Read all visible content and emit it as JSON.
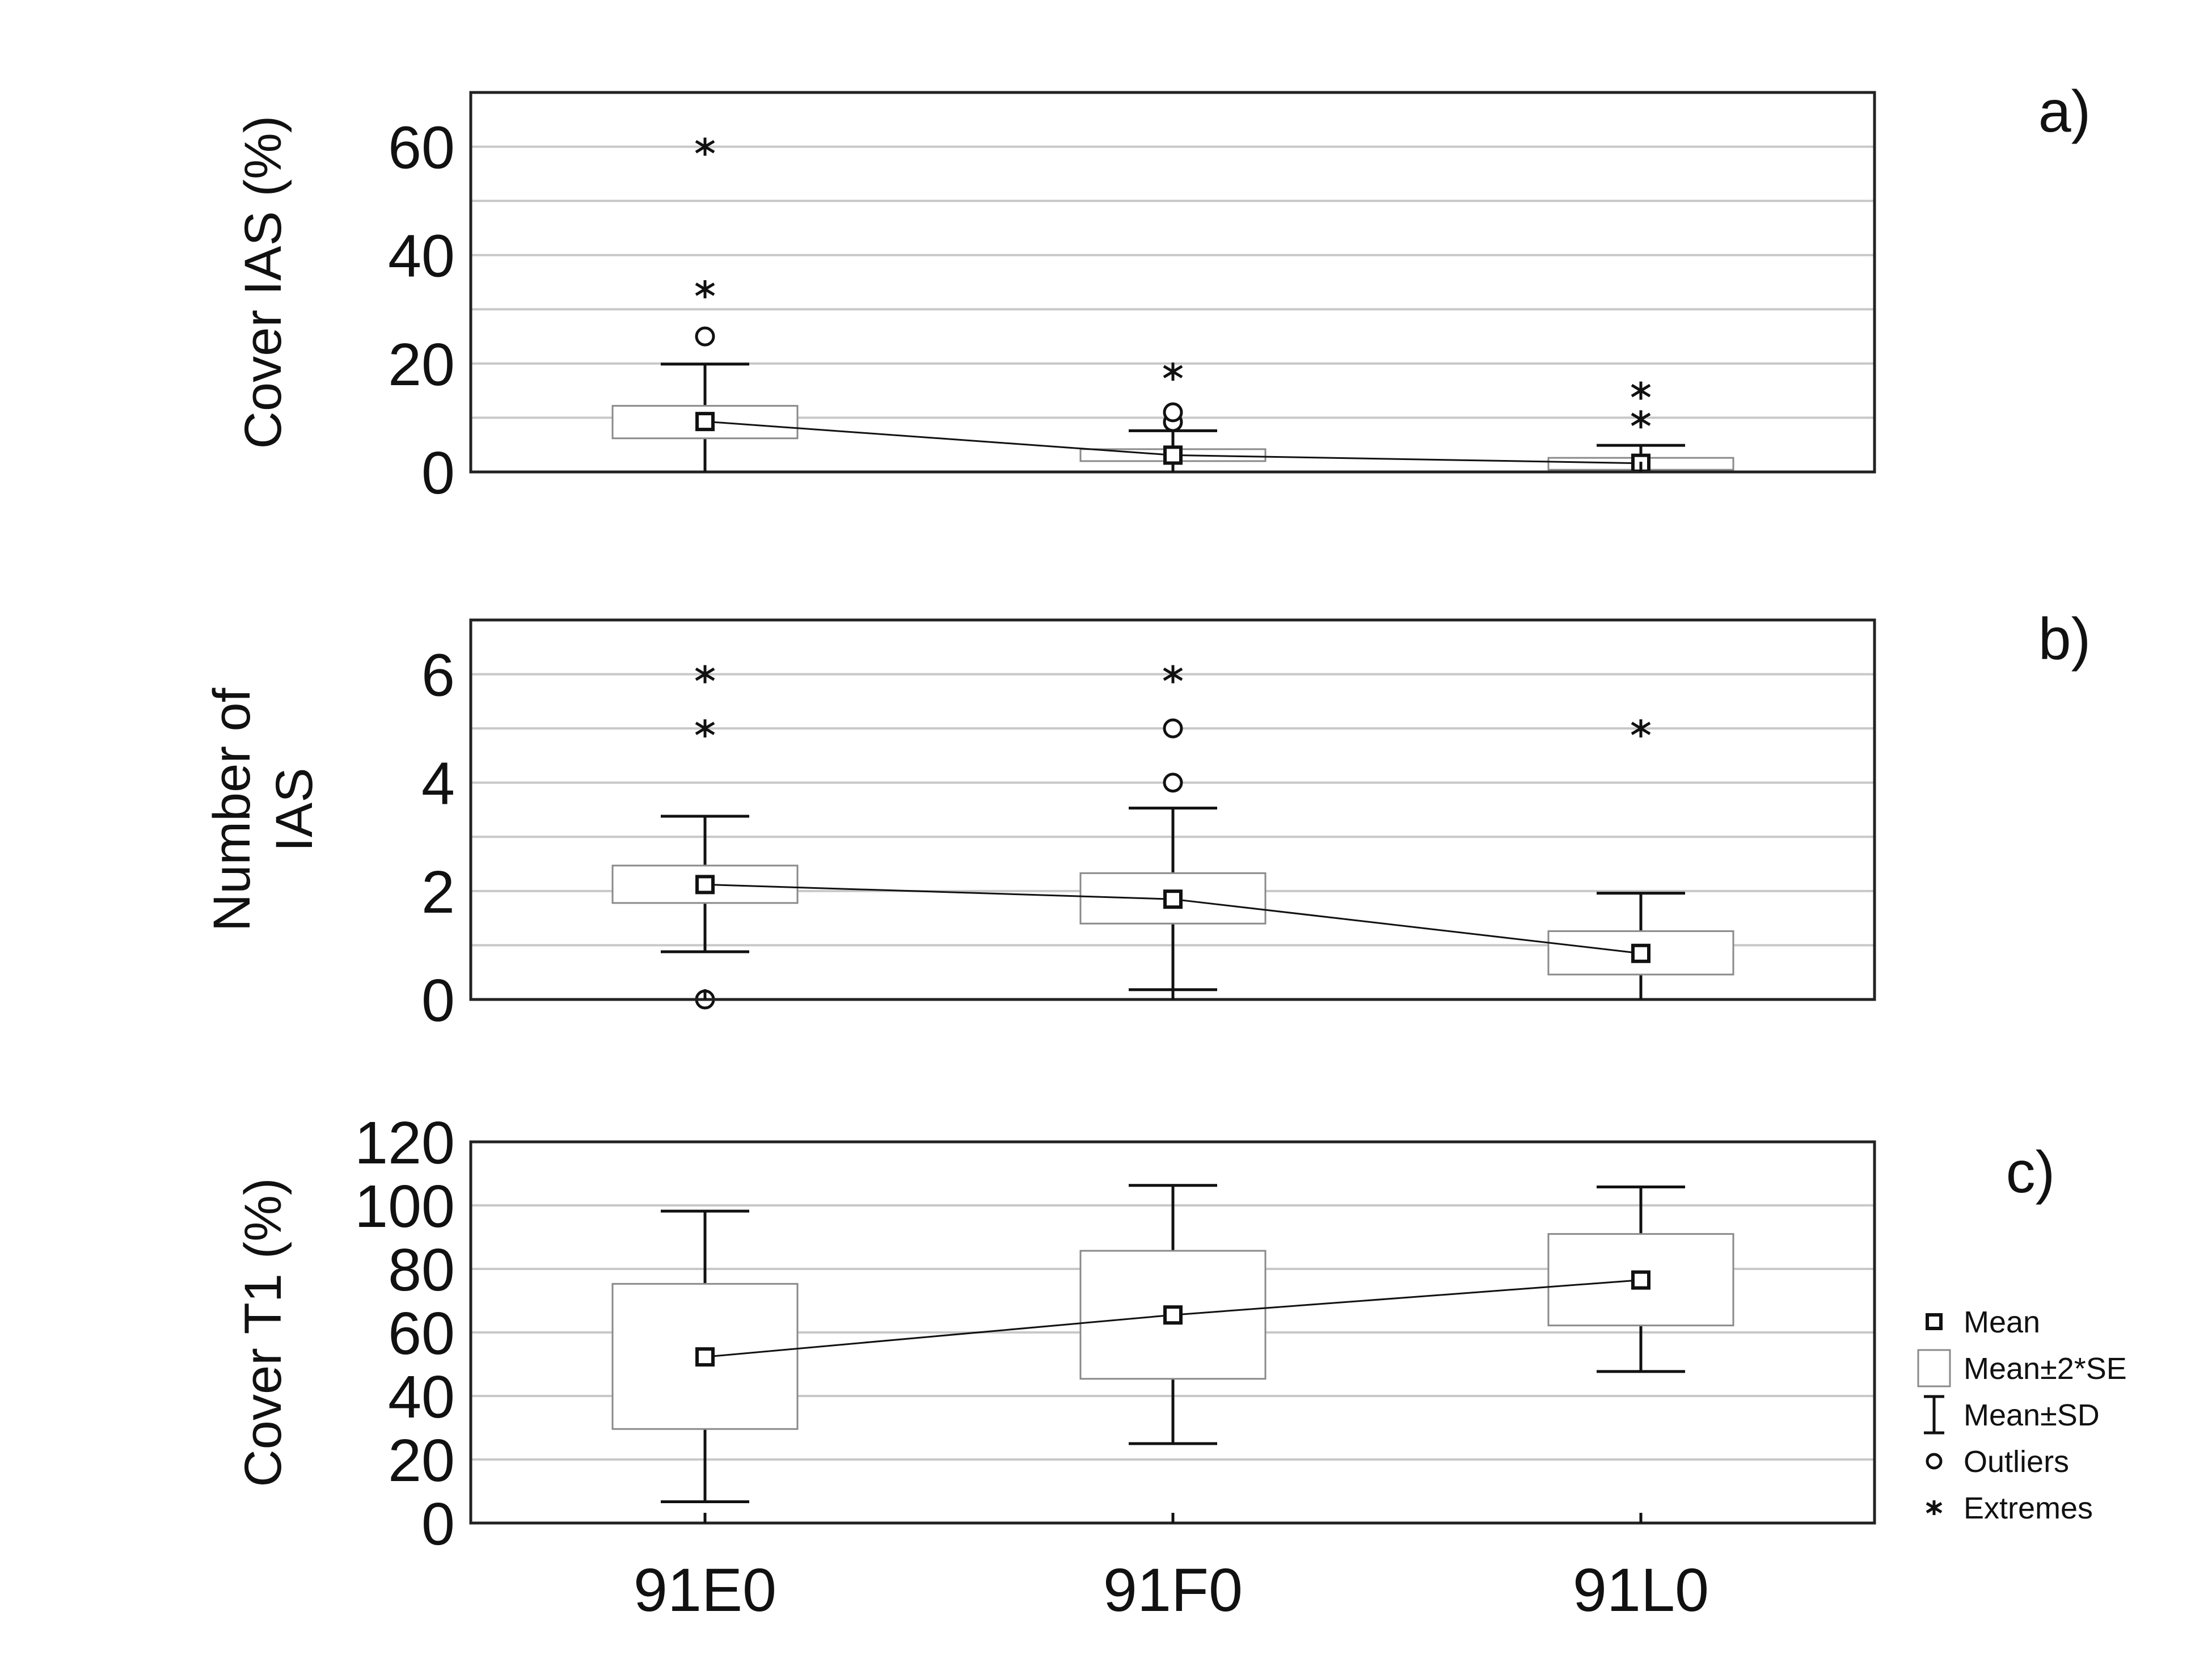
{
  "chart_data": [
    {
      "type": "box",
      "panel_label": "a)",
      "ylabel": "Cover IAS (%)",
      "ylim": [
        0,
        70
      ],
      "yticks": [
        0,
        20,
        40,
        60
      ],
      "ygrid": [
        10,
        20,
        30,
        40,
        50,
        60
      ],
      "categories": [
        "91E0",
        "91F0",
        "91L0"
      ],
      "mean": [
        9.3,
        3.1,
        1.6
      ],
      "se2_low": [
        6.2,
        2.0,
        0.4
      ],
      "se2_high": [
        12.2,
        4.2,
        2.6
      ],
      "sd_low": [
        0,
        0,
        0
      ],
      "sd_high": [
        19.9,
        7.6,
        4.9
      ],
      "outliers": [
        [
          25.0
        ],
        [
          9.2,
          11.0
        ],
        []
      ],
      "extremes": [
        [
          60.0,
          33.7
        ],
        [
          18.5
        ],
        [
          15.0,
          9.7
        ]
      ]
    },
    {
      "type": "box",
      "panel_label": "b)",
      "ylabel": "Number of IAS",
      "ylim": [
        0,
        7
      ],
      "yticks": [
        0,
        2,
        4,
        6
      ],
      "ygrid": [
        1,
        2,
        3,
        4,
        5,
        6
      ],
      "categories": [
        "91E0",
        "91F0",
        "91L0"
      ],
      "mean": [
        2.12,
        1.85,
        0.85
      ],
      "se2_low": [
        1.78,
        1.4,
        0.46
      ],
      "se2_high": [
        2.47,
        2.33,
        1.26
      ],
      "sd_low": [
        0.88,
        0.18,
        0
      ],
      "sd_high": [
        3.38,
        3.53,
        1.96
      ],
      "outliers": [
        [
          0
        ],
        [
          5,
          4
        ],
        []
      ],
      "extremes": [
        [
          6,
          5
        ],
        [
          6
        ],
        [
          5
        ]
      ]
    },
    {
      "type": "box",
      "panel_label": "c)",
      "ylabel": "Cover T1 (%)",
      "ylim": [
        0,
        120
      ],
      "yticks": [
        0,
        20,
        40,
        60,
        80,
        100,
        120
      ],
      "ygrid": [
        20,
        40,
        60,
        80,
        100
      ],
      "categories": [
        "91E0",
        "91F0",
        "91L0"
      ],
      "mean": [
        52.3,
        65.5,
        76.5
      ],
      "se2_low": [
        29.6,
        45.4,
        62.2
      ],
      "se2_high": [
        75.3,
        85.7,
        91.0
      ],
      "sd_low": [
        6.7,
        25.0,
        47.7
      ],
      "sd_high": [
        98.2,
        106.3,
        105.8
      ],
      "outliers": [
        [],
        [],
        []
      ],
      "extremes": [
        [],
        [],
        []
      ]
    }
  ],
  "legend": [
    {
      "label": "Mean",
      "icon": "square-marker-icon"
    },
    {
      "label": "Mean±2*SE",
      "icon": "box-icon"
    },
    {
      "label": "Mean±SD",
      "icon": "whisker-icon"
    },
    {
      "label": "Outliers",
      "icon": "circle-icon"
    },
    {
      "label": "Extremes",
      "icon": "asterisk-icon"
    }
  ]
}
